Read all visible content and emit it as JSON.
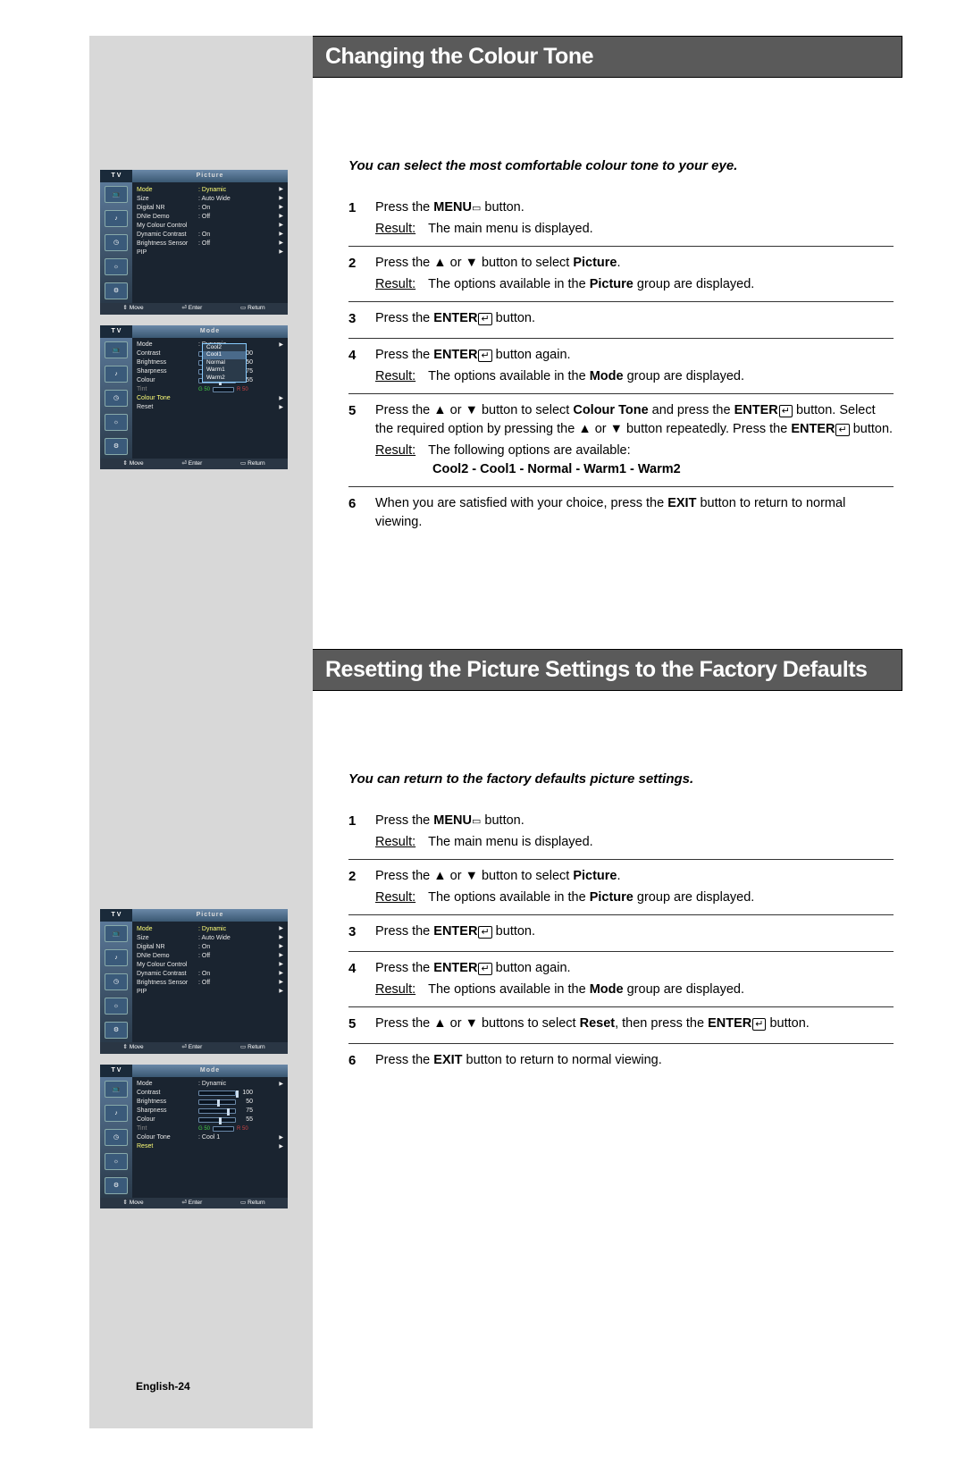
{
  "section1": {
    "title": "Changing the Colour Tone",
    "intro": "You can select the most comfortable colour tone to your eye.",
    "steps": [
      {
        "num": "1",
        "parts": [
          "Press the ",
          "MENU",
          " button."
        ],
        "result": "The main menu is displayed."
      },
      {
        "num": "2",
        "parts": [
          "Press the ▲ or ▼ button to select ",
          "Picture",
          "."
        ],
        "result_parts": [
          "The options available in the ",
          "Picture",
          " group are displayed."
        ]
      },
      {
        "num": "3",
        "parts": [
          "Press the ",
          "ENTER",
          " button."
        ]
      },
      {
        "num": "4",
        "parts": [
          "Press the ",
          "ENTER",
          " button again."
        ],
        "result_parts": [
          "The options available in the ",
          "Mode",
          " group are displayed."
        ]
      },
      {
        "num": "5",
        "parts": [
          "Press the ▲ or ▼ button to select ",
          "Colour Tone",
          " and press the ",
          "ENTER",
          " button. Select the required option by pressing the ▲ or ▼ button repeatedly. Press the ",
          "ENTER",
          " button."
        ],
        "result": "The following options are available:",
        "options": "Cool2 - Cool1 - Normal - Warm1 - Warm2"
      },
      {
        "num": "6",
        "parts": [
          "When you are satisfied with your choice, press the ",
          "EXIT",
          " button to return to normal viewing."
        ]
      }
    ]
  },
  "section2": {
    "title": "Resetting the Picture Settings to the Factory Defaults",
    "intro": "You can return to the factory defaults  picture settings.",
    "steps": [
      {
        "num": "1",
        "parts": [
          "Press the ",
          "MENU",
          " button."
        ],
        "result": "The main menu is displayed."
      },
      {
        "num": "2",
        "parts": [
          "Press the ▲ or ▼ button to select ",
          "Picture",
          "."
        ],
        "result_parts": [
          "The options available in the ",
          "Picture",
          " group are displayed."
        ]
      },
      {
        "num": "3",
        "parts": [
          "Press the ",
          "ENTER",
          " button."
        ]
      },
      {
        "num": "4",
        "parts": [
          "Press the ",
          "ENTER",
          " button again."
        ],
        "result_parts": [
          "The options available in the ",
          "Mode",
          " group are displayed."
        ]
      },
      {
        "num": "5",
        "parts": [
          "Press the ▲ or ▼ buttons to select ",
          "Reset",
          ", then press the ",
          "ENTER",
          " button."
        ]
      },
      {
        "num": "6",
        "parts": [
          "Press the ",
          "EXIT",
          " button to return to normal viewing."
        ]
      }
    ]
  },
  "tv_menu1": {
    "tab": "T V",
    "title": "Picture",
    "items": [
      {
        "label": "Mode",
        "value": ": Dynamic",
        "arrow": true,
        "sel": true
      },
      {
        "label": "Size",
        "value": ": Auto Wide",
        "arrow": true
      },
      {
        "label": "Digital NR",
        "value": ": On",
        "arrow": true
      },
      {
        "label": "DNIe Demo",
        "value": ": Off",
        "arrow": true
      },
      {
        "label": "My Colour Control",
        "value": "",
        "arrow": true
      },
      {
        "label": "Dynamic Contrast",
        "value": ": On",
        "arrow": true
      },
      {
        "label": "Brightness Sensor",
        "value": ": Off",
        "arrow": true
      },
      {
        "label": "PIP",
        "value": "",
        "arrow": true
      }
    ],
    "footer": {
      "move": "Move",
      "enter": "Enter",
      "return": "Return"
    }
  },
  "tv_menu2": {
    "tab": "T V",
    "title": "Mode",
    "items": [
      {
        "label": "Mode",
        "value": ": Dynamic",
        "arrow": true
      },
      {
        "label": "Contrast",
        "slider": 100,
        "num": "100"
      },
      {
        "label": "Brightness",
        "slider": 50,
        "num": "50"
      },
      {
        "label": "Sharpness",
        "slider": 75,
        "num": "75"
      },
      {
        "label": "Colour",
        "slider": 55,
        "num": "55"
      },
      {
        "label": "Tint",
        "tint": true,
        "num": "50",
        "dim": true
      },
      {
        "label": "Colour Tone",
        "value": "",
        "arrow": true,
        "sel": true
      },
      {
        "label": "Reset",
        "value": "",
        "arrow": true
      }
    ],
    "dropdown": [
      "Cool2",
      "Cool1",
      "Normal",
      "Warm1",
      "Warm2"
    ],
    "dropdown_sel": 1,
    "footer": {
      "move": "Move",
      "enter": "Enter",
      "return": "Return"
    }
  },
  "tv_menu3": {
    "tab": "T V",
    "title": "Picture",
    "items": [
      {
        "label": "Mode",
        "value": ": Dynamic",
        "arrow": true,
        "sel": true
      },
      {
        "label": "Size",
        "value": ": Auto Wide",
        "arrow": true
      },
      {
        "label": "Digital NR",
        "value": ": On",
        "arrow": true
      },
      {
        "label": "DNIe Demo",
        "value": ": Off",
        "arrow": true
      },
      {
        "label": "My Colour Control",
        "value": "",
        "arrow": true
      },
      {
        "label": "Dynamic Contrast",
        "value": ": On",
        "arrow": true
      },
      {
        "label": "Brightness Sensor",
        "value": ": Off",
        "arrow": true
      },
      {
        "label": "PIP",
        "value": "",
        "arrow": true
      }
    ],
    "footer": {
      "move": "Move",
      "enter": "Enter",
      "return": "Return"
    }
  },
  "tv_menu4": {
    "tab": "T V",
    "title": "Mode",
    "items": [
      {
        "label": "Mode",
        "value": ": Dynamic",
        "arrow": true
      },
      {
        "label": "Contrast",
        "slider": 100,
        "num": "100"
      },
      {
        "label": "Brightness",
        "slider": 50,
        "num": "50"
      },
      {
        "label": "Sharpness",
        "slider": 75,
        "num": "75"
      },
      {
        "label": "Colour",
        "slider": 55,
        "num": "55"
      },
      {
        "label": "Tint",
        "tint": true,
        "num": "50",
        "dim": true
      },
      {
        "label": "Colour Tone",
        "value": ": Cool 1",
        "arrow": true
      },
      {
        "label": "Reset",
        "value": "",
        "arrow": true,
        "sel": true
      }
    ],
    "footer": {
      "move": "Move",
      "enter": "Enter",
      "return": "Return"
    }
  },
  "icons": {
    "menu_btn": "▭",
    "enter_btn": "↵",
    "up": "▲",
    "down": "▼",
    "tv_screen": "📺",
    "tv_music": "♪",
    "tv_clock": "◷",
    "tv_sun": "☼",
    "tv_gear": "⚙",
    "move_icon": "⇕",
    "enter_icon": "⏎",
    "return_icon": "▭"
  },
  "labels": {
    "result": "Result:",
    "g": "G  50",
    "r": "R  50"
  },
  "page_footer": "English-24"
}
